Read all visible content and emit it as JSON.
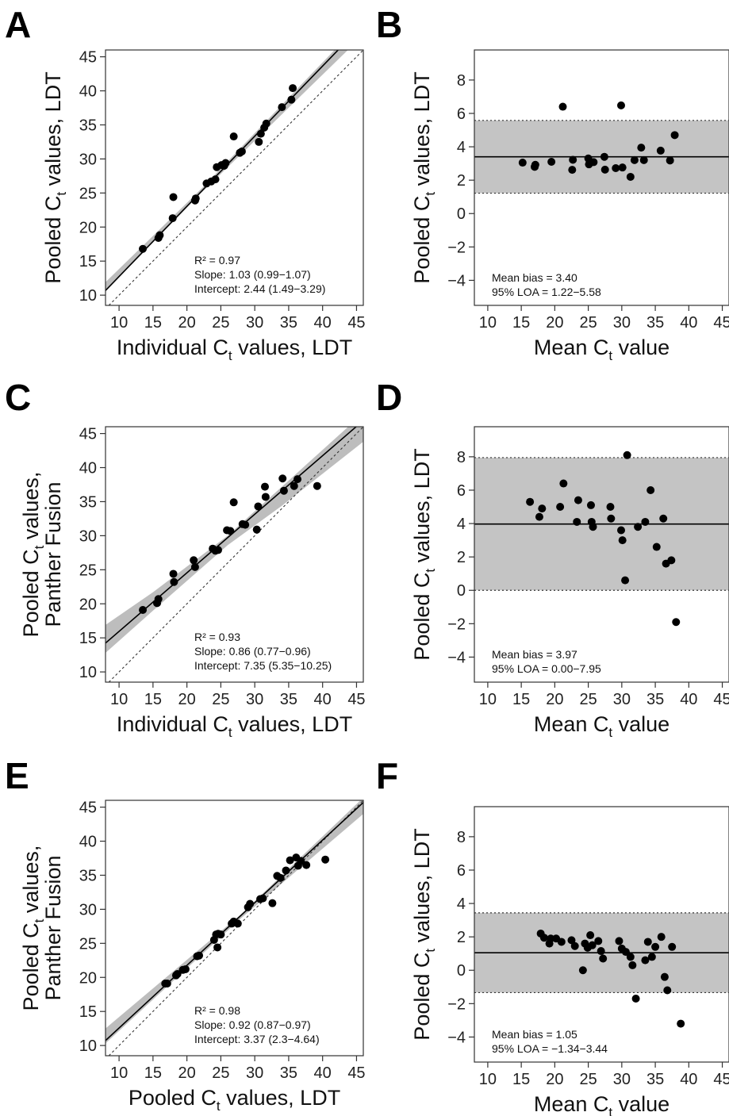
{
  "panels": [
    {
      "letter": "A"
    },
    {
      "letter": "B"
    },
    {
      "letter": "C"
    },
    {
      "letter": "D"
    },
    {
      "letter": "E"
    },
    {
      "letter": "F"
    }
  ],
  "chart_data": [
    {
      "type": "scatter",
      "panel": "A",
      "xlabel_main": "Individual C",
      "xlabel_sub": "t",
      "xlabel_tail": " values, LDT",
      "ylabel_lines": [
        {
          "main": "Pooled C",
          "sub": "t",
          "tail": " values, LDT"
        }
      ],
      "xlim": [
        8,
        46
      ],
      "ylim": [
        8.5,
        46
      ],
      "xticks": [
        10,
        15,
        20,
        25,
        30,
        35,
        40,
        45
      ],
      "yticks": [
        10,
        15,
        20,
        25,
        30,
        35,
        40,
        45
      ],
      "x": [
        13.5,
        15.8,
        16,
        17.9,
        18,
        21.2,
        21.3,
        22.9,
        23.6,
        24.2,
        24.4,
        25.1,
        25.5,
        25.7,
        26.9,
        27.8,
        28.1,
        30.6,
        30.9,
        31.4,
        31.7,
        34,
        35.4,
        35.6
      ],
      "y": [
        16.8,
        18.4,
        18.8,
        21.3,
        24.4,
        23.9,
        24.2,
        26.4,
        26.7,
        27,
        28.8,
        29.1,
        29,
        29.4,
        33.3,
        30.9,
        31.1,
        32.5,
        33.7,
        34.6,
        35.2,
        37.6,
        38.7,
        40.4
      ],
      "fit": {
        "slope": 1.03,
        "intercept": 2.44
      },
      "band": {
        "x": [
          8,
          22,
          46
        ],
        "upper": [
          11.9,
          25.5,
          50.4
        ],
        "lower": [
          10.6,
          24.9,
          48.2
        ]
      },
      "identity_line": true,
      "annotations": [
        "R² = 0.97",
        "Slope: 1.03 (0.99−1.07)",
        "Intercept: 2.44 (1.49−3.29)"
      ]
    },
    {
      "type": "bland-altman",
      "panel": "B",
      "xlabel_main": "Mean C",
      "xlabel_sub": "t",
      "xlabel_tail": " value",
      "ylabel_lines": [
        {
          "main": "Pooled C",
          "sub": "t",
          "tail": " values, LDT"
        }
      ],
      "xlim": [
        8,
        46
      ],
      "ylim": [
        -5.5,
        9.8
      ],
      "xticks": [
        10,
        15,
        20,
        25,
        30,
        35,
        40,
        45
      ],
      "yticks": [
        -4,
        -2,
        0,
        2,
        4,
        6,
        8
      ],
      "x": [
        15.2,
        17,
        17.1,
        19.5,
        21.2,
        22.6,
        22.7,
        25,
        25.1,
        25.8,
        27.4,
        27.5,
        29.1,
        29.9,
        30.1,
        31.3,
        31.9,
        32.9,
        33.3,
        35.8,
        37.2,
        37.9
      ],
      "y": [
        3.05,
        2.8,
        2.92,
        3.1,
        6.4,
        2.62,
        3.22,
        3.3,
        2.95,
        3.08,
        3.4,
        2.63,
        2.72,
        6.48,
        2.76,
        2.2,
        3.2,
        3.95,
        3.2,
        3.77,
        3.18,
        4.7
      ],
      "mean_bias": 3.4,
      "loa": [
        1.22,
        5.58
      ],
      "annotations": [
        "Mean bias = 3.40",
        "95% LOA = 1.22−5.58"
      ]
    },
    {
      "type": "scatter",
      "panel": "C",
      "xlabel_main": "Individual C",
      "xlabel_sub": "t",
      "xlabel_tail": " values, LDT",
      "ylabel_lines": [
        {
          "main": "Pooled C",
          "sub": "t",
          "tail": " values,"
        },
        {
          "main": "Panther Fusion",
          "sub": "",
          "tail": ""
        }
      ],
      "xlim": [
        8,
        46
      ],
      "ylim": [
        8.5,
        46
      ],
      "xticks": [
        10,
        15,
        20,
        25,
        30,
        35,
        40,
        45
      ],
      "yticks": [
        10,
        15,
        20,
        25,
        30,
        35,
        40,
        45
      ],
      "x": [
        13.5,
        15.6,
        15.8,
        18,
        18.1,
        21,
        21.2,
        23.8,
        24.2,
        24.6,
        25.9,
        26.4,
        26.9,
        28.2,
        28.6,
        30.3,
        30.5,
        31.5,
        31.6,
        34.1,
        34.3,
        35.8,
        36.3,
        39.2
      ],
      "y": [
        19.1,
        20.1,
        20.7,
        24.4,
        23.2,
        26.4,
        25.4,
        28.1,
        27.8,
        27.9,
        30.8,
        30.7,
        34.9,
        31.7,
        31.6,
        30.9,
        34.3,
        37.2,
        35.7,
        38.4,
        36.6,
        37.3,
        38.3,
        37.3
      ],
      "fit": {
        "slope": 0.86,
        "intercept": 7.35
      },
      "band": {
        "x": [
          8,
          15,
          26,
          34,
          46
        ],
        "upper": [
          16.9,
          21.7,
          30.0,
          37.2,
          48.0
        ],
        "lower": [
          12.8,
          19.0,
          28.6,
          34.4,
          43.8
        ]
      },
      "identity_line": true,
      "annotations": [
        "R² = 0.93",
        "Slope: 0.86 (0.77−0.96)",
        "Intercept: 7.35 (5.35−10.25)"
      ]
    },
    {
      "type": "bland-altman",
      "panel": "D",
      "xlabel_main": "Mean C",
      "xlabel_sub": "t",
      "xlabel_tail": " value",
      "ylabel_lines": [
        {
          "main": "Pooled C",
          "sub": "t",
          "tail": " values, LDT"
        }
      ],
      "xlim": [
        8,
        46
      ],
      "ylim": [
        -5.5,
        9.8
      ],
      "xticks": [
        10,
        15,
        20,
        25,
        30,
        35,
        40,
        45
      ],
      "yticks": [
        -4,
        -2,
        0,
        2,
        4,
        6,
        8
      ],
      "x": [
        16.3,
        17.7,
        18.1,
        20.8,
        21.3,
        23.3,
        23.5,
        25.4,
        25.5,
        25.7,
        28.3,
        28.4,
        29.9,
        30.1,
        30.5,
        30.8,
        32.4,
        33.5,
        34.3,
        35.2,
        36.2,
        36.6,
        37.4,
        38.1
      ],
      "y": [
        5.3,
        4.4,
        4.9,
        5,
        6.4,
        4.1,
        5.4,
        5.1,
        4.1,
        3.8,
        5,
        4.3,
        3.6,
        3,
        0.6,
        8.1,
        3.8,
        4.1,
        6,
        2.6,
        4.3,
        1.6,
        1.8,
        -1.9
      ],
      "mean_bias": 3.97,
      "loa": [
        0,
        7.95
      ],
      "annotations": [
        "Mean bias = 3.97",
        "95% LOA = 0.00−7.95"
      ]
    },
    {
      "type": "scatter",
      "panel": "E",
      "xlabel_main": "Pooled C",
      "xlabel_sub": "t",
      "xlabel_tail": " values, LDT",
      "ylabel_lines": [
        {
          "main": "Pooled C",
          "sub": "t",
          "tail": " values,"
        },
        {
          "main": "Panther Fusion",
          "sub": "",
          "tail": ""
        }
      ],
      "xlim": [
        8,
        46
      ],
      "ylim": [
        8.5,
        46
      ],
      "xticks": [
        10,
        15,
        20,
        25,
        30,
        35,
        40,
        45
      ],
      "yticks": [
        10,
        15,
        20,
        25,
        30,
        35,
        40,
        45
      ],
      "x": [
        16.8,
        17.1,
        18.4,
        18.6,
        19.4,
        19.8,
        21.5,
        21.8,
        24,
        24.3,
        24.5,
        24.6,
        25,
        26.6,
        26.9,
        27.5,
        29,
        29.3,
        30.8,
        31.2,
        32.6,
        33.3,
        33.8,
        34.6,
        35.2,
        36.1,
        36.4,
        36.8,
        37.6,
        40.4
      ],
      "y": [
        19.1,
        19.1,
        20.3,
        20.5,
        21.1,
        21.2,
        23.1,
        23.2,
        25.5,
        26.3,
        24.4,
        26.4,
        26.3,
        27.9,
        28.2,
        27.9,
        30.3,
        30.8,
        31.5,
        31.6,
        30.9,
        34.9,
        34.6,
        35.7,
        37.2,
        37.6,
        36.4,
        37.1,
        36.5,
        37.3
      ],
      "fit": {
        "slope": 0.92,
        "intercept": 3.37
      },
      "band": {
        "x": [
          8,
          28,
          46
        ],
        "upper": [
          12.5,
          29.3,
          46.4
        ],
        "lower": [
          10.3,
          28.7,
          44.0
        ]
      },
      "identity_line": true,
      "annotations": [
        "R² = 0.98",
        "Slope: 0.92 (0.87−0.97)",
        "Intercept: 3.37 (2.3−4.64)"
      ]
    },
    {
      "type": "bland-altman",
      "panel": "F",
      "xlabel_main": "Mean C",
      "xlabel_sub": "t",
      "xlabel_tail": " value",
      "ylabel_lines": [
        {
          "main": "Pooled C",
          "sub": "t",
          "tail": " values, LDT"
        }
      ],
      "xlim": [
        8,
        46
      ],
      "ylim": [
        -5.5,
        9.8
      ],
      "xticks": [
        10,
        15,
        20,
        25,
        30,
        35,
        40,
        45
      ],
      "yticks": [
        -4,
        -2,
        0,
        2,
        4,
        6,
        8
      ],
      "x": [
        17.9,
        18.4,
        19.2,
        19.4,
        20.2,
        21,
        22.5,
        23,
        24.2,
        24.5,
        24.9,
        25.3,
        25.6,
        26.5,
        26.9,
        27.2,
        29.6,
        30,
        30.6,
        31.3,
        31.6,
        32.1,
        33.5,
        33.9,
        34.5,
        35,
        35.9,
        36.4,
        36.8,
        37.5,
        38.8
      ],
      "y": [
        2.2,
        1.95,
        1.6,
        1.9,
        1.9,
        1.7,
        1.8,
        1.45,
        0,
        1.6,
        1.35,
        2.1,
        1.5,
        1.75,
        1.15,
        0.7,
        1.75,
        1.3,
        1.1,
        0.8,
        0.3,
        -1.7,
        0.6,
        1.7,
        0.8,
        1.4,
        2,
        -0.4,
        -1.2,
        1.4,
        -3.2
      ],
      "mean_bias": 1.05,
      "loa": [
        -1.34,
        3.44
      ],
      "annotations": [
        "Mean bias = 1.05",
        "95% LOA = −1.34−3.44"
      ]
    }
  ]
}
